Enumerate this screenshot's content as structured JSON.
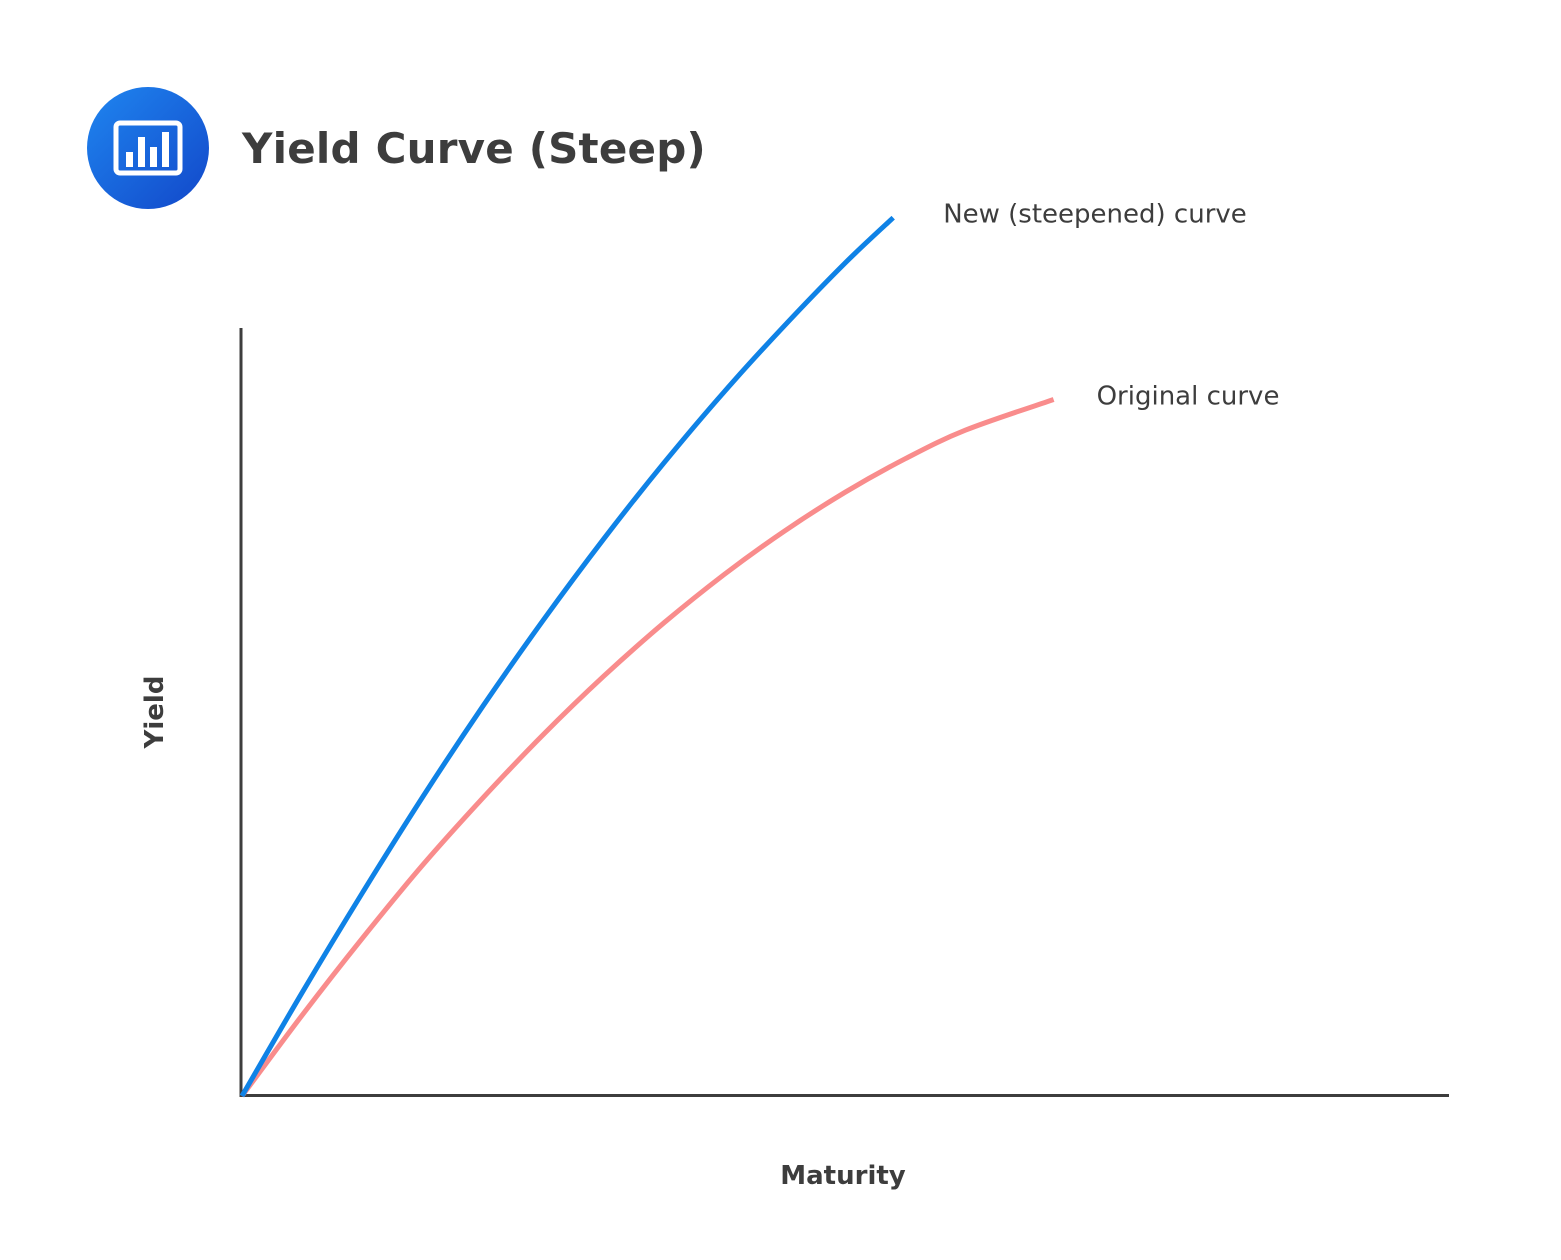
{
  "header": {
    "title": "Yield Curve (Steep)",
    "icon": "bar-chart-icon",
    "icon_color": "#1565e0"
  },
  "chart_data": {
    "type": "line",
    "title": "Yield Curve (Steep)",
    "xlabel": "Maturity",
    "ylabel": "Yield",
    "xlim": [
      0,
      100
    ],
    "ylim": [
      0,
      100
    ],
    "grid": false,
    "axis_ticks": false,
    "legend": "inline labels at curve ends",
    "series": [
      {
        "name": "New (steepened) curve",
        "color": "#0f82e6",
        "x": [
          0,
          5,
          10,
          15,
          20,
          25,
          30,
          35,
          40,
          45,
          50,
          54
        ],
        "y": [
          0,
          10.5,
          20.6,
          30.3,
          39.5,
          48.2,
          56.4,
          64.1,
          71.3,
          78.0,
          84.3,
          88.9
        ]
      },
      {
        "name": "Original curve",
        "color": "#f98c8c",
        "x": [
          0,
          5,
          10,
          15,
          20,
          25,
          30,
          35,
          40,
          45,
          50,
          55,
          60,
          67.3
        ],
        "y": [
          0,
          8.2,
          16.0,
          23.4,
          30.2,
          36.6,
          42.5,
          47.9,
          52.8,
          57.2,
          61.1,
          64.5,
          67.4,
          70.5
        ]
      }
    ]
  }
}
